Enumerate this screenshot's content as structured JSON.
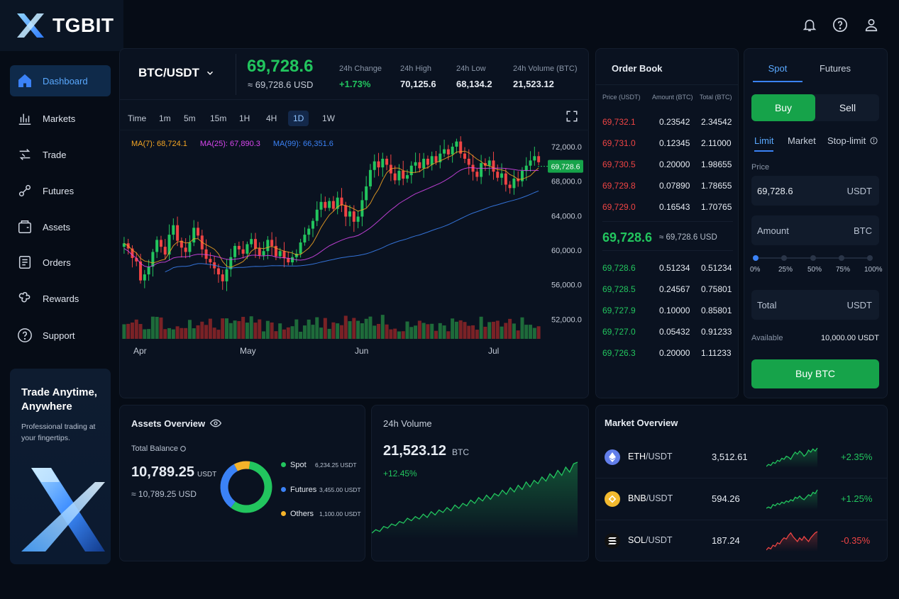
{
  "brand": {
    "name": "TGBIT",
    "logo_icon": "x-logo-icon"
  },
  "sidebar": {
    "items": [
      {
        "label": "Dashboard",
        "icon": "home-icon",
        "active": true
      },
      {
        "label": "Markets",
        "icon": "bar-chart-icon"
      },
      {
        "label": "Trade",
        "icon": "trade-arrows-icon"
      },
      {
        "label": "Futures",
        "icon": "futures-icon"
      },
      {
        "label": "Assets",
        "icon": "wallet-icon"
      },
      {
        "label": "Orders",
        "icon": "list-icon"
      },
      {
        "label": "Rewards",
        "icon": "gift-icon"
      },
      {
        "label": "Support",
        "icon": "help-icon"
      }
    ],
    "promo": {
      "title": "Trade Anytime, Anywhere",
      "subtitle": "Professional trading at your fingertips."
    }
  },
  "topbar": {
    "icons": [
      "bell-icon",
      "help-circle-icon",
      "user-icon"
    ]
  },
  "ticker": {
    "pair": "BTC/USDT",
    "price": "69,728.6",
    "price_usd": "≈ 69,728.6 USD",
    "change_label": "24h Change",
    "change": "+1.73%",
    "high_label": "24h High",
    "high": "70,125.6",
    "low_label": "24h Low",
    "low": "68,134.2",
    "volume_label": "24h Volume (BTC)",
    "volume": "21,523.12"
  },
  "chart_toolbar": {
    "timeframes": [
      "Time",
      "1m",
      "5m",
      "15m",
      "1H",
      "4H",
      "1D",
      "1W"
    ],
    "active": "1D"
  },
  "chart_data": {
    "type": "candlestick",
    "indicators": [
      {
        "name": "MA(7)",
        "value": "68,724.1",
        "color": "#f5a623"
      },
      {
        "name": "MA(25)",
        "value": "67,890.3",
        "color": "#d946ef"
      },
      {
        "name": "MA(99)",
        "value": "66,351.6",
        "color": "#3b82f6"
      }
    ],
    "y_ticks": [
      "72,000.0",
      "68,000.0",
      "64,000.0",
      "60,000.0",
      "56,000.0",
      "52,000.0"
    ],
    "y_tick_values": [
      72000,
      68000,
      64000,
      60000,
      56000,
      52000
    ],
    "ylim": [
      50800,
      73800
    ],
    "x_ticks": [
      "Apr",
      "May",
      "Jun",
      "Jul"
    ],
    "last_price_label": "69,728.6",
    "closes": [
      60800,
      60200,
      59100,
      58700,
      56500,
      57200,
      58100,
      59800,
      61200,
      60400,
      59500,
      61800,
      62900,
      61100,
      60300,
      59800,
      60900,
      62600,
      61700,
      60100,
      59000,
      58600,
      57900,
      57200,
      56400,
      57800,
      59200,
      60500,
      60100,
      59600,
      60700,
      61300,
      60200,
      59400,
      59900,
      61200,
      60500,
      59300,
      59900,
      59100,
      58600,
      59200,
      59600,
      60900,
      61800,
      62500,
      63400,
      64700,
      65600,
      64900,
      65700,
      64800,
      66100,
      65200,
      63900,
      64500,
      63300,
      63900,
      65800,
      67400,
      69300,
      70300,
      69600,
      70600,
      69900,
      68900,
      68100,
      69200,
      68300,
      68700,
      69800,
      70200,
      69500,
      70600,
      69900,
      70900,
      70200,
      71200,
      71700,
      71100,
      72000,
      72600,
      71200,
      70600,
      69900,
      69100,
      68500,
      70100,
      69800,
      70400,
      69100,
      68400,
      68900,
      67600,
      67200,
      68300,
      68000,
      69200,
      69800,
      70400,
      70900,
      70200
    ]
  },
  "order_book": {
    "title": "Order Book",
    "headers": [
      "Price (USDT)",
      "Amount (BTC)",
      "Total (BTC)"
    ],
    "asks": [
      [
        "69,732.1",
        "0.23542",
        "2.34542"
      ],
      [
        "69,731.0",
        "0.12345",
        "2.11000"
      ],
      [
        "69,730.5",
        "0.20000",
        "1.98655"
      ],
      [
        "69,729.8",
        "0.07890",
        "1.78655"
      ],
      [
        "69,729.0",
        "0.16543",
        "1.70765"
      ]
    ],
    "mid_price": "69,728.6",
    "mid_usd": "≈ 69,728.6 USD",
    "bids": [
      [
        "69,728.6",
        "0.51234",
        "0.51234"
      ],
      [
        "69,728.5",
        "0.24567",
        "0.75801"
      ],
      [
        "69,727.9",
        "0.10000",
        "0.85801"
      ],
      [
        "69,727.0",
        "0.05432",
        "0.91233"
      ],
      [
        "69,726.3",
        "0.20000",
        "1.11233"
      ]
    ]
  },
  "trade_form": {
    "tabs": [
      "Spot",
      "Futures"
    ],
    "buy_label": "Buy",
    "sell_label": "Sell",
    "order_types": [
      "Limit",
      "Market",
      "Stop-limit"
    ],
    "price_label": "Price",
    "price_value": "69,728.6",
    "price_unit": "USDT",
    "amount_placeholder": "Amount",
    "amount_unit": "BTC",
    "slider_ticks": [
      "0%",
      "25%",
      "50%",
      "75%",
      "100%"
    ],
    "slider_value": 0,
    "total_placeholder": "Total",
    "total_unit": "USDT",
    "available_label": "Available",
    "available_value": "10,000.00 USDT",
    "submit_label": "Buy BTC"
  },
  "assets": {
    "title": "Assets Overview",
    "balance_label": "Total Balance",
    "balance": "10,789.25",
    "balance_unit": "USDT",
    "balance_usd": "≈ 10,789.25 USD",
    "legend": [
      {
        "name": "Spot",
        "value": "6,234.25 USDT",
        "color": "#22c55e",
        "amount": 6234.25
      },
      {
        "name": "Futures",
        "value": "3,455.00 USDT",
        "color": "#3b82f6",
        "amount": 3455
      },
      {
        "name": "Others",
        "value": "1,100.00 USDT",
        "color": "#f5b32a",
        "amount": 1100
      }
    ]
  },
  "volume_card": {
    "title": "24h Volume",
    "value": "21,523.12",
    "unit": "BTC",
    "change": "+12.45%",
    "trend": [
      10,
      14,
      12,
      18,
      16,
      21,
      19,
      24,
      22,
      28,
      25,
      30,
      27,
      33,
      29,
      36,
      32,
      38,
      35,
      41,
      37,
      44,
      40,
      46,
      43,
      50,
      46,
      53,
      49,
      56,
      51,
      58,
      55,
      62,
      57,
      65,
      60,
      68,
      63,
      72,
      66,
      74,
      70,
      78,
      73,
      82,
      77,
      86,
      80,
      90,
      84,
      94,
      96
    ]
  },
  "market_overview": {
    "title": "Market Overview",
    "rows": [
      {
        "base": "ETH",
        "quote": "/USDT",
        "price": "3,512.61",
        "change": "+2.35%",
        "icon": "eth-icon",
        "color": "#627eea",
        "positive": true,
        "spark": [
          8,
          10,
          9,
          12,
          11,
          14,
          13,
          16,
          15,
          18,
          17,
          15,
          19,
          22,
          20,
          23,
          21,
          18,
          20,
          24,
          22,
          25,
          23,
          26
        ]
      },
      {
        "base": "BNB",
        "quote": "/USDT",
        "price": "594.26",
        "change": "+1.25%",
        "icon": "bnb-icon",
        "color": "#f3ba2f",
        "positive": true,
        "spark": [
          8,
          9,
          8,
          11,
          10,
          12,
          11,
          13,
          12,
          14,
          13,
          15,
          14,
          17,
          16,
          18,
          16,
          15,
          17,
          19,
          18,
          21,
          20,
          23
        ]
      },
      {
        "base": "SOL",
        "quote": "/USDT",
        "price": "187.24",
        "change": "-0.35%",
        "icon": "sol-icon",
        "color": "#9945ff",
        "positive": false,
        "spark": [
          10,
          12,
          11,
          14,
          13,
          16,
          15,
          18,
          20,
          19,
          22,
          24,
          21,
          19,
          17,
          20,
          18,
          21,
          19,
          17,
          20,
          22,
          24,
          25
        ]
      }
    ]
  }
}
